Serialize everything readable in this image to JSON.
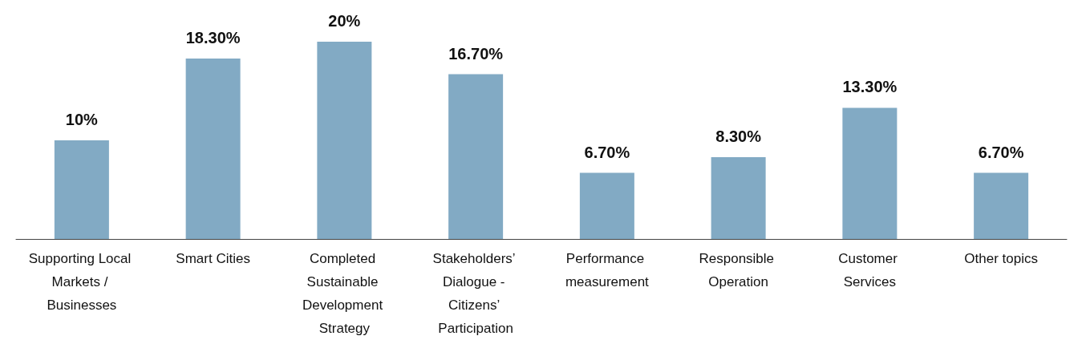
{
  "chart_data": {
    "type": "bar",
    "categories": [
      "Supporting Local Markets / Businesses",
      "Smart Cities",
      "Completed Sustainable Development Strategy",
      "Stakeholders’ Dialogue - Citizens’ Participation",
      "Performance measurement",
      "Responsible Operation",
      "Customer Services",
      "Other topics"
    ],
    "values": [
      10,
      18.3,
      20,
      16.7,
      6.7,
      8.3,
      13.3,
      6.7
    ],
    "value_labels": [
      "10%",
      "18.30%",
      "20%",
      "16.70%",
      "6.70%",
      "8.30%",
      "13.30%",
      "6.70%"
    ],
    "color": "#82aac4",
    "ylim": [
      0,
      20
    ]
  }
}
